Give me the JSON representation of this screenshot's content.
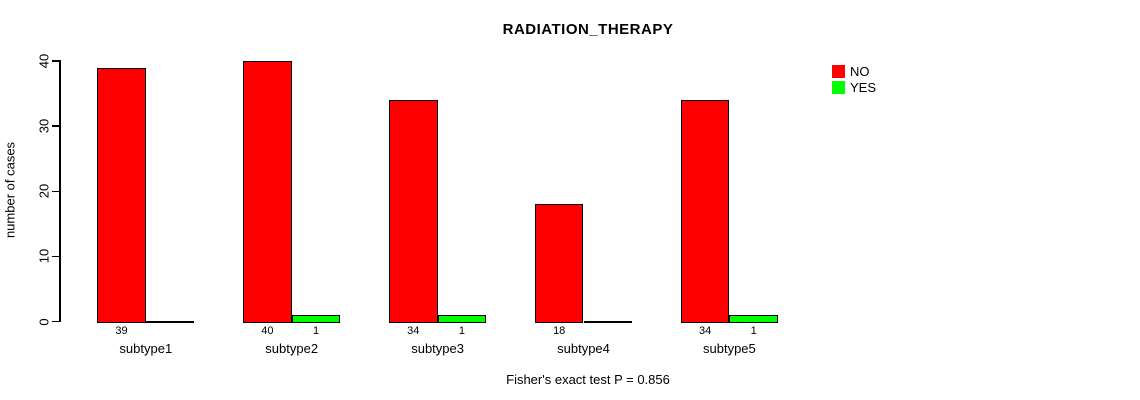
{
  "chart_data": {
    "type": "bar",
    "title": "RADIATION_THERAPY",
    "ylabel": "number of cases",
    "xlabel": "",
    "categories": [
      "subtype1",
      "subtype2",
      "subtype3",
      "subtype4",
      "subtype5"
    ],
    "series": [
      {
        "name": "NO",
        "color": "#ff0000",
        "values": [
          39,
          40,
          34,
          18,
          34
        ]
      },
      {
        "name": "YES",
        "color": "#00ff00",
        "values": [
          0,
          1,
          1,
          0,
          1
        ]
      }
    ],
    "ylim": [
      0,
      40
    ],
    "yticks": [
      0,
      10,
      20,
      30,
      40
    ],
    "grid": false,
    "legend_position": "top-right",
    "bar_value_labels": [
      [
        "39",
        "40",
        "34",
        "18",
        "34"
      ],
      [
        "",
        "1",
        "1",
        "",
        "1"
      ]
    ],
    "note": "Fisher's exact test P = 0.856"
  }
}
